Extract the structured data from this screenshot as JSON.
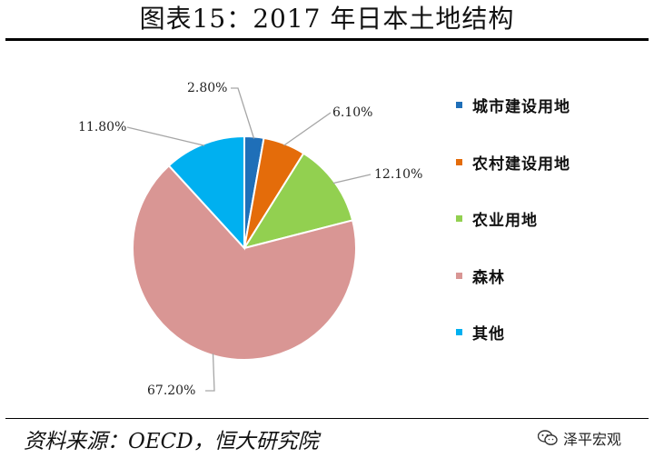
{
  "title": "图表15：2017 年日本土地结构",
  "source": "资料来源：OECD，恒大研究院",
  "watermark": "泽平宏观",
  "watermark_icon": "wechat-icon",
  "chart_data": {
    "type": "pie",
    "title": "图表15：2017 年日本土地结构",
    "slices": [
      {
        "name": "城市建设用地",
        "value": 2.8,
        "label": "2.80%",
        "color": "#1f6fb8"
      },
      {
        "name": "农村建设用地",
        "value": 6.1,
        "label": "6.10%",
        "color": "#e46c0a"
      },
      {
        "name": "农业用地",
        "value": 12.1,
        "label": "12.10%",
        "color": "#92d050"
      },
      {
        "name": "森林",
        "value": 67.2,
        "label": "67.20%",
        "color": "#d99694"
      },
      {
        "name": "其他",
        "value": 11.8,
        "label": "11.80%",
        "color": "#00b0f0"
      }
    ],
    "start_angle": "12 o'clock",
    "direction": "clockwise",
    "legend_position": "right"
  }
}
